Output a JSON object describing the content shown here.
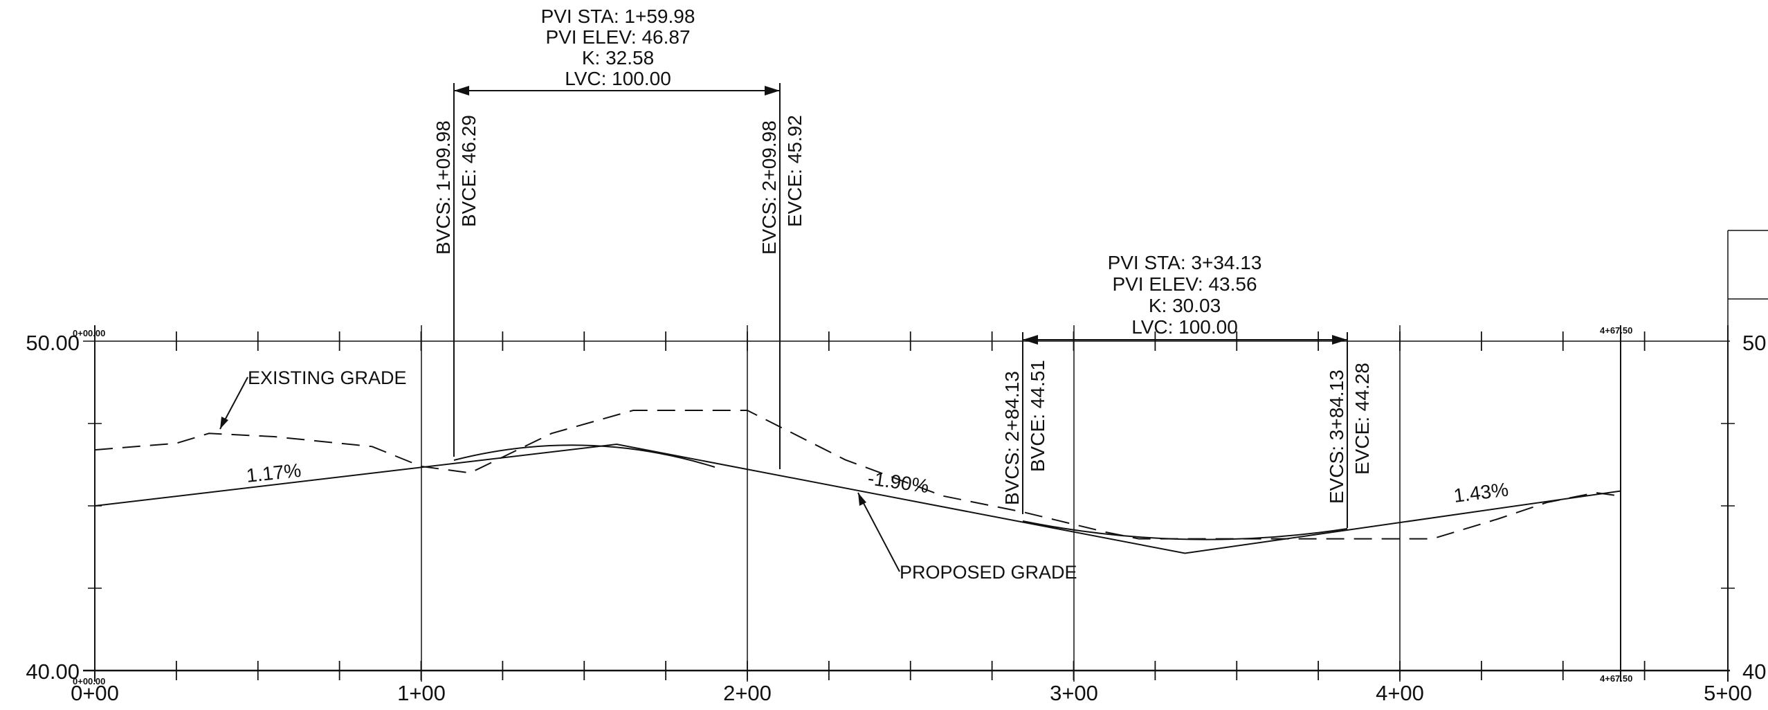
{
  "profile": {
    "station_labels": [
      "0+00",
      "1+00",
      "2+00",
      "3+00",
      "4+00",
      "5+00"
    ],
    "elevation_labels_left": [
      "50.00",
      "40.00"
    ],
    "elevation_labels_right": [
      "50",
      "40"
    ],
    "start_marker_top": "0+00.00",
    "start_marker_bottom": "0+00.00",
    "end_marker_top": "4+67.50",
    "end_marker_bottom": "4+67.50"
  },
  "curve1": {
    "pvi_sta": "PVI STA: 1+59.98",
    "pvi_elev": "PVI ELEV: 46.87",
    "k": "K: 32.58",
    "lvc": "LVC: 100.00",
    "bvcs": "BVCS: 1+09.98",
    "bvce": "BVCE: 46.29",
    "evcs": "EVCS: 2+09.98",
    "evce": "EVCE: 45.92"
  },
  "curve2": {
    "pvi_sta": "PVI STA: 3+34.13",
    "pvi_elev": "PVI ELEV: 43.56",
    "k": "K: 30.03",
    "lvc": "LVC: 100.00",
    "bvcs": "BVCS: 2+84.13",
    "bvce": "BVCE: 44.51",
    "evcs": "EVCS: 3+84.13",
    "evce": "EVCE: 44.28"
  },
  "labels": {
    "existing_grade": "EXISTING GRADE",
    "proposed_grade": "PROPOSED GRADE",
    "grade1": "1.17%",
    "grade2": "-1.90%",
    "grade3": "1.43%"
  },
  "data": {
    "proposed_grade": [
      [
        0,
        45.0
      ],
      [
        159.98,
        46.87
      ],
      [
        334.13,
        43.56
      ],
      [
        467.5,
        45.45
      ]
    ],
    "existing_grade": [
      [
        0,
        46.7
      ],
      [
        25,
        46.9
      ],
      [
        35,
        47.2
      ],
      [
        55,
        47.1
      ],
      [
        85,
        46.8
      ],
      [
        100,
        46.2
      ],
      [
        115,
        46.0
      ],
      [
        140,
        47.2
      ],
      [
        165,
        47.9
      ],
      [
        200,
        47.9
      ],
      [
        230,
        46.4
      ],
      [
        260,
        45.3
      ],
      [
        285,
        44.8
      ],
      [
        310,
        44.2
      ],
      [
        320,
        44.0
      ],
      [
        350,
        44.0
      ],
      [
        360,
        44.0
      ],
      [
        410,
        44.0
      ],
      [
        430,
        44.6
      ],
      [
        445,
        45.1
      ],
      [
        460,
        45.4
      ],
      [
        467.5,
        45.3
      ]
    ],
    "station_range": [
      0,
      500
    ],
    "elevation_range": [
      40,
      50
    ]
  }
}
